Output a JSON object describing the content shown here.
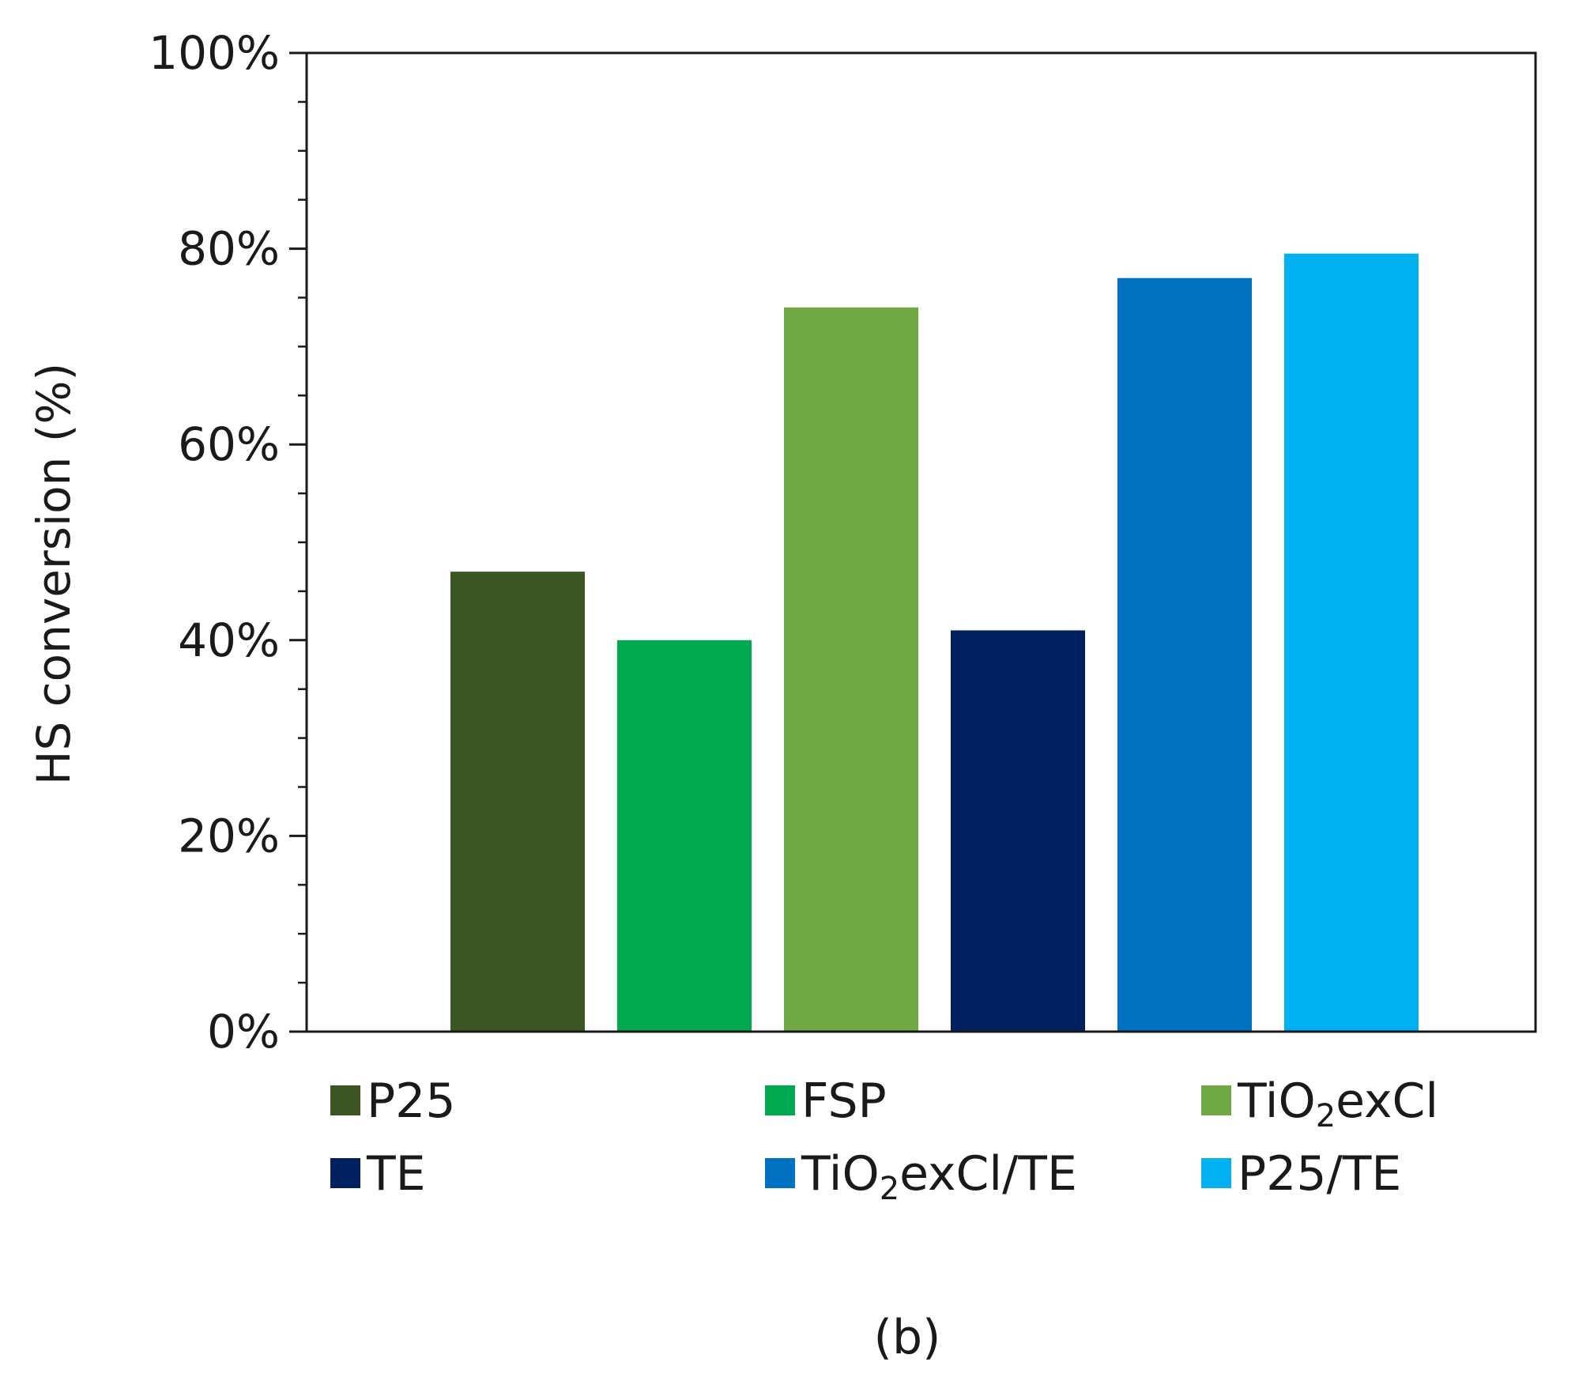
{
  "chart_data": {
    "type": "bar",
    "title": "",
    "xlabel": "",
    "ylabel": "HS conversion (%)",
    "ylim": [
      0,
      100
    ],
    "y_ticks": [
      "0%",
      "20%",
      "40%",
      "60%",
      "80%",
      "100%"
    ],
    "grid": false,
    "legend_position": "bottom",
    "categories": [
      "P25",
      "FSP",
      "TiO2exCl",
      "TE",
      "TiO2exCl/TE",
      "P25/TE"
    ],
    "values": [
      47,
      40,
      74,
      41,
      77,
      79.5
    ],
    "colors": [
      "#3b5523",
      "#00a94f",
      "#70a844",
      "#00205f",
      "#0070c0",
      "#00b0f0"
    ],
    "legend": [
      {
        "prefix": "P25",
        "sub": "",
        "suffix": ""
      },
      {
        "prefix": "FSP",
        "sub": "",
        "suffix": ""
      },
      {
        "prefix": "TiO",
        "sub": "2",
        "suffix": "exCl"
      },
      {
        "prefix": "TE",
        "sub": "",
        "suffix": ""
      },
      {
        "prefix": "TiO",
        "sub": "2",
        "suffix": "exCl/TE"
      },
      {
        "prefix": "P25/TE",
        "sub": "",
        "suffix": ""
      }
    ]
  },
  "caption": "(b)"
}
